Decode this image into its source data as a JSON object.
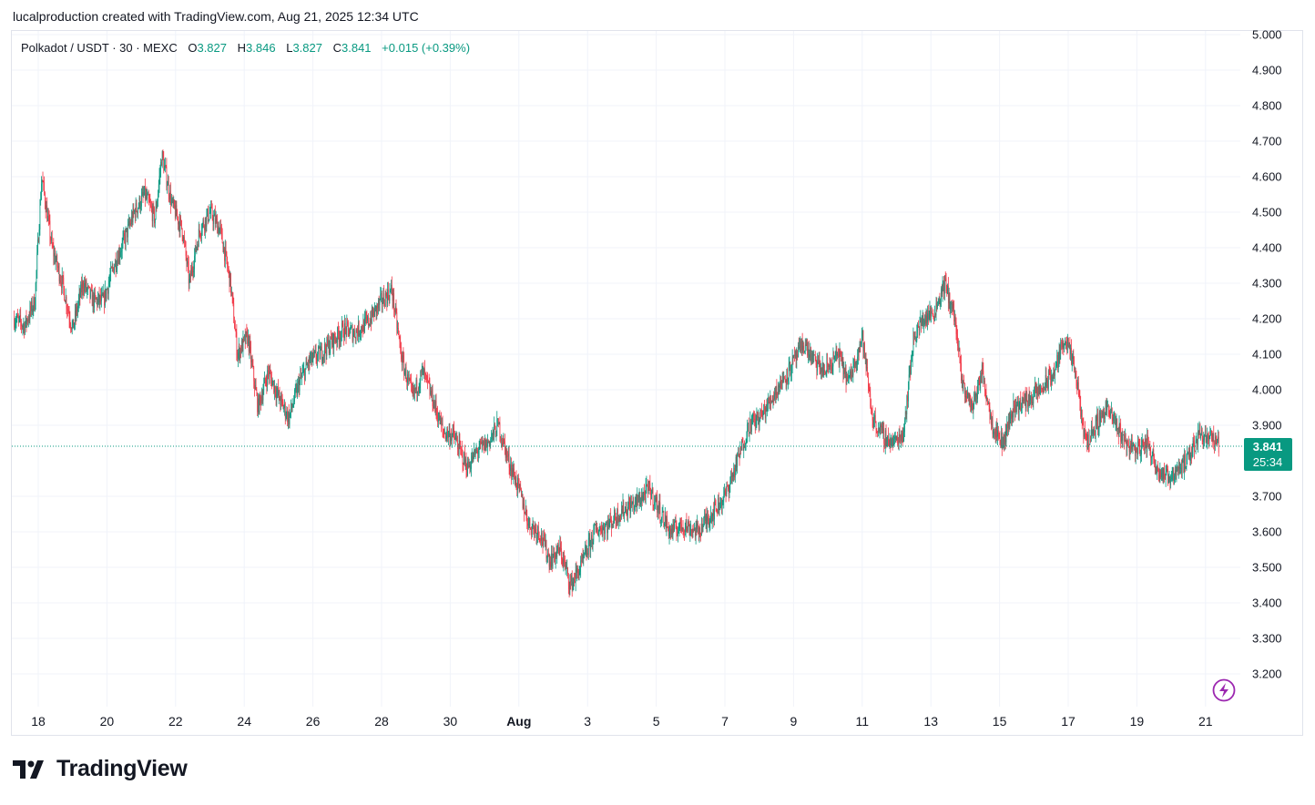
{
  "caption": "lucalproduction created with TradingView.com, Aug 21, 2025 12:34 UTC",
  "legend": {
    "symbol": "Polkadot / USDT · 30 · MEXC",
    "o_label": "O",
    "o_value": "3.827",
    "h_label": "H",
    "h_value": "3.846",
    "l_label": "L",
    "l_value": "3.827",
    "c_label": "C",
    "c_value": "3.841",
    "change": "+0.015 (+0.39%)"
  },
  "price_tag": {
    "price": "3.841",
    "countdown": "25:34"
  },
  "brand": {
    "name": "TradingView",
    "logo_icon": "tradingview-logo-icon"
  },
  "colors": {
    "up": "#089981",
    "down": "#f23645",
    "price_tag_bg": "#089981",
    "grid": "#f0f3fa",
    "axis_text": "#131722",
    "lightning_icon": "#9c27b0"
  },
  "icons": {
    "lightning": "lightning-icon"
  },
  "chart_data": {
    "type": "candlestick",
    "title": "Polkadot / USDT · 30 · MEXC",
    "ylim": [
      3.1,
      5.0
    ],
    "y_ticks": [
      "5.000",
      "4.900",
      "4.800",
      "4.700",
      "4.600",
      "4.500",
      "4.400",
      "4.300",
      "4.200",
      "4.100",
      "4.000",
      "3.900",
      "3.700",
      "3.600",
      "3.500",
      "3.400",
      "3.300",
      "3.200"
    ],
    "x_ticks": [
      {
        "label": "18",
        "day": 18
      },
      {
        "label": "20",
        "day": 20
      },
      {
        "label": "22",
        "day": 22
      },
      {
        "label": "24",
        "day": 24
      },
      {
        "label": "26",
        "day": 26
      },
      {
        "label": "28",
        "day": 28
      },
      {
        "label": "30",
        "day": 30
      },
      {
        "label": "Aug",
        "day": 32,
        "bold": true
      },
      {
        "label": "3",
        "day": 34
      },
      {
        "label": "5",
        "day": 36
      },
      {
        "label": "7",
        "day": 38
      },
      {
        "label": "9",
        "day": 40
      },
      {
        "label": "11",
        "day": 42
      },
      {
        "label": "13",
        "day": 44
      },
      {
        "label": "15",
        "day": 46
      },
      {
        "label": "17",
        "day": 48
      },
      {
        "label": "19",
        "day": 50
      },
      {
        "label": "21",
        "day": 52
      }
    ],
    "approx_price_path": [
      [
        17.3,
        4.2
      ],
      [
        17.6,
        4.18
      ],
      [
        17.9,
        4.25
      ],
      [
        18.1,
        4.6
      ],
      [
        18.4,
        4.4
      ],
      [
        18.7,
        4.3
      ],
      [
        19.0,
        4.17
      ],
      [
        19.3,
        4.3
      ],
      [
        19.6,
        4.25
      ],
      [
        19.9,
        4.25
      ],
      [
        20.2,
        4.35
      ],
      [
        20.5,
        4.42
      ],
      [
        20.8,
        4.5
      ],
      [
        21.1,
        4.55
      ],
      [
        21.4,
        4.48
      ],
      [
        21.6,
        4.66
      ],
      [
        21.9,
        4.52
      ],
      [
        22.2,
        4.45
      ],
      [
        22.4,
        4.3
      ],
      [
        22.7,
        4.45
      ],
      [
        23.0,
        4.5
      ],
      [
        23.3,
        4.45
      ],
      [
        23.6,
        4.3
      ],
      [
        23.8,
        4.1
      ],
      [
        24.1,
        4.15
      ],
      [
        24.4,
        3.95
      ],
      [
        24.7,
        4.05
      ],
      [
        25.0,
        3.98
      ],
      [
        25.3,
        3.92
      ],
      [
        25.6,
        4.02
      ],
      [
        25.9,
        4.08
      ],
      [
        26.2,
        4.1
      ],
      [
        26.5,
        4.13
      ],
      [
        26.9,
        4.17
      ],
      [
        27.2,
        4.16
      ],
      [
        27.6,
        4.19
      ],
      [
        28.0,
        4.25
      ],
      [
        28.3,
        4.28
      ],
      [
        28.6,
        4.08
      ],
      [
        28.9,
        3.98
      ],
      [
        29.2,
        4.05
      ],
      [
        29.5,
        3.97
      ],
      [
        29.8,
        3.88
      ],
      [
        30.1,
        3.87
      ],
      [
        30.5,
        3.78
      ],
      [
        30.8,
        3.83
      ],
      [
        31.1,
        3.85
      ],
      [
        31.4,
        3.9
      ],
      [
        31.7,
        3.8
      ],
      [
        32.0,
        3.72
      ],
      [
        32.3,
        3.62
      ],
      [
        32.6,
        3.6
      ],
      [
        32.9,
        3.52
      ],
      [
        33.2,
        3.55
      ],
      [
        33.5,
        3.45
      ],
      [
        33.8,
        3.5
      ],
      [
        34.2,
        3.6
      ],
      [
        34.6,
        3.62
      ],
      [
        35.0,
        3.66
      ],
      [
        35.4,
        3.68
      ],
      [
        35.8,
        3.72
      ],
      [
        36.1,
        3.66
      ],
      [
        36.4,
        3.6
      ],
      [
        36.8,
        3.62
      ],
      [
        37.2,
        3.6
      ],
      [
        37.6,
        3.65
      ],
      [
        38.0,
        3.7
      ],
      [
        38.3,
        3.78
      ],
      [
        38.7,
        3.9
      ],
      [
        39.1,
        3.93
      ],
      [
        39.5,
        4.0
      ],
      [
        39.9,
        4.06
      ],
      [
        40.3,
        4.13
      ],
      [
        40.6,
        4.08
      ],
      [
        40.9,
        4.05
      ],
      [
        41.3,
        4.1
      ],
      [
        41.6,
        4.02
      ],
      [
        42.0,
        4.15
      ],
      [
        42.3,
        3.92
      ],
      [
        42.6,
        3.87
      ],
      [
        42.9,
        3.85
      ],
      [
        43.2,
        3.88
      ],
      [
        43.5,
        4.15
      ],
      [
        43.8,
        4.2
      ],
      [
        44.1,
        4.22
      ],
      [
        44.4,
        4.3
      ],
      [
        44.7,
        4.2
      ],
      [
        44.9,
        4.02
      ],
      [
        45.2,
        3.95
      ],
      [
        45.5,
        4.05
      ],
      [
        45.8,
        3.9
      ],
      [
        46.1,
        3.85
      ],
      [
        46.4,
        3.95
      ],
      [
        46.8,
        3.97
      ],
      [
        47.2,
        4.0
      ],
      [
        47.6,
        4.05
      ],
      [
        47.9,
        4.15
      ],
      [
        48.2,
        4.05
      ],
      [
        48.5,
        3.85
      ],
      [
        48.8,
        3.9
      ],
      [
        49.1,
        3.95
      ],
      [
        49.4,
        3.9
      ],
      [
        49.7,
        3.85
      ],
      [
        50.0,
        3.83
      ],
      [
        50.3,
        3.85
      ],
      [
        50.6,
        3.78
      ],
      [
        50.9,
        3.75
      ],
      [
        51.2,
        3.78
      ],
      [
        51.5,
        3.8
      ],
      [
        51.8,
        3.88
      ],
      [
        52.1,
        3.87
      ],
      [
        52.4,
        3.84
      ]
    ],
    "last_price": 3.841
  }
}
